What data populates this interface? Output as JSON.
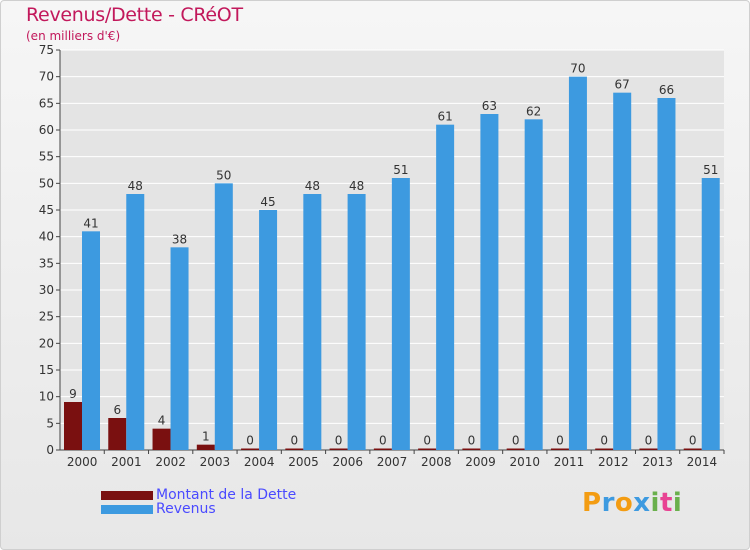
{
  "title": "Revenus/Dette - CRéOT",
  "subtitle": "(en milliers d'€)",
  "colors": {
    "debt": "#7a1010",
    "revenue": "#3d9ae0",
    "axis": "#444444",
    "grid": "#ffffff",
    "title": "#c2185b",
    "legend_text": "#4a4aff"
  },
  "chart_data": {
    "type": "bar",
    "title": "Revenus/Dette - CRéOT",
    "ylabel": "(en milliers d'€)",
    "xlabel": "",
    "categories": [
      "2000",
      "2001",
      "2002",
      "2003",
      "2004",
      "2005",
      "2006",
      "2007",
      "2008",
      "2009",
      "2010",
      "2011",
      "2012",
      "2013",
      "2014"
    ],
    "series": [
      {
        "name": "Montant de la Dette",
        "values": [
          9,
          6,
          4,
          1,
          0,
          0,
          0,
          0,
          0,
          0,
          0,
          0,
          0,
          0,
          0
        ]
      },
      {
        "name": "Revenus",
        "values": [
          41,
          48,
          38,
          50,
          45,
          48,
          48,
          51,
          61,
          63,
          62,
          70,
          67,
          66,
          51
        ]
      }
    ],
    "ylim": [
      0,
      75
    ],
    "yticks": [
      0,
      5,
      10,
      15,
      20,
      25,
      30,
      35,
      40,
      45,
      50,
      55,
      60,
      65,
      70,
      75
    ],
    "grid": true,
    "legend_position": "bottom-left"
  },
  "legend": {
    "items": [
      {
        "label": "Montant de la Dette",
        "color": "#7a1010"
      },
      {
        "label": "Revenus",
        "color": "#3d9ae0"
      }
    ]
  },
  "logo": {
    "letters": [
      "P",
      "r",
      "o",
      "x",
      "i",
      "t",
      "i"
    ],
    "colors": [
      "#f39c12",
      "#3d9ae0",
      "#f39c12",
      "#3d9ae0",
      "#6ab04c",
      "#e84393",
      "#6ab04c"
    ]
  }
}
